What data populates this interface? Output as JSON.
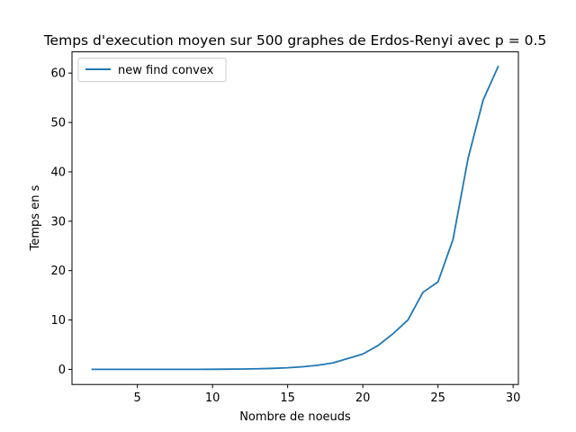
{
  "chart_data": {
    "type": "line",
    "title": "Temps d'execution moyen sur 500 graphes de Erdos-Renyi avec p = 0.5",
    "xlabel": "Nombre de noeuds",
    "ylabel": "Temps en s",
    "xlim": [
      0.65,
      30.35
    ],
    "ylim": [
      -3.06,
      64.3
    ],
    "xticks": [
      5,
      10,
      15,
      20,
      25,
      30
    ],
    "yticks": [
      0,
      10,
      20,
      30,
      40,
      50,
      60
    ],
    "grid": false,
    "legend_position": "upper-left",
    "series": [
      {
        "name": "new find convex",
        "color": "#1f77b4",
        "x": [
          2,
          3,
          4,
          5,
          6,
          7,
          8,
          9,
          10,
          11,
          12,
          13,
          14,
          15,
          16,
          17,
          18,
          19,
          20,
          21,
          22,
          23,
          24,
          25,
          26,
          27,
          28,
          29
        ],
        "y": [
          0,
          0,
          0,
          0,
          0,
          0,
          0,
          0.01,
          0.02,
          0.04,
          0.07,
          0.12,
          0.2,
          0.33,
          0.53,
          0.82,
          1.3,
          2.2,
          3.1,
          4.8,
          7.2,
          10,
          15.6,
          17.7,
          26.3,
          42.7,
          54.5,
          61.3
        ]
      }
    ]
  }
}
